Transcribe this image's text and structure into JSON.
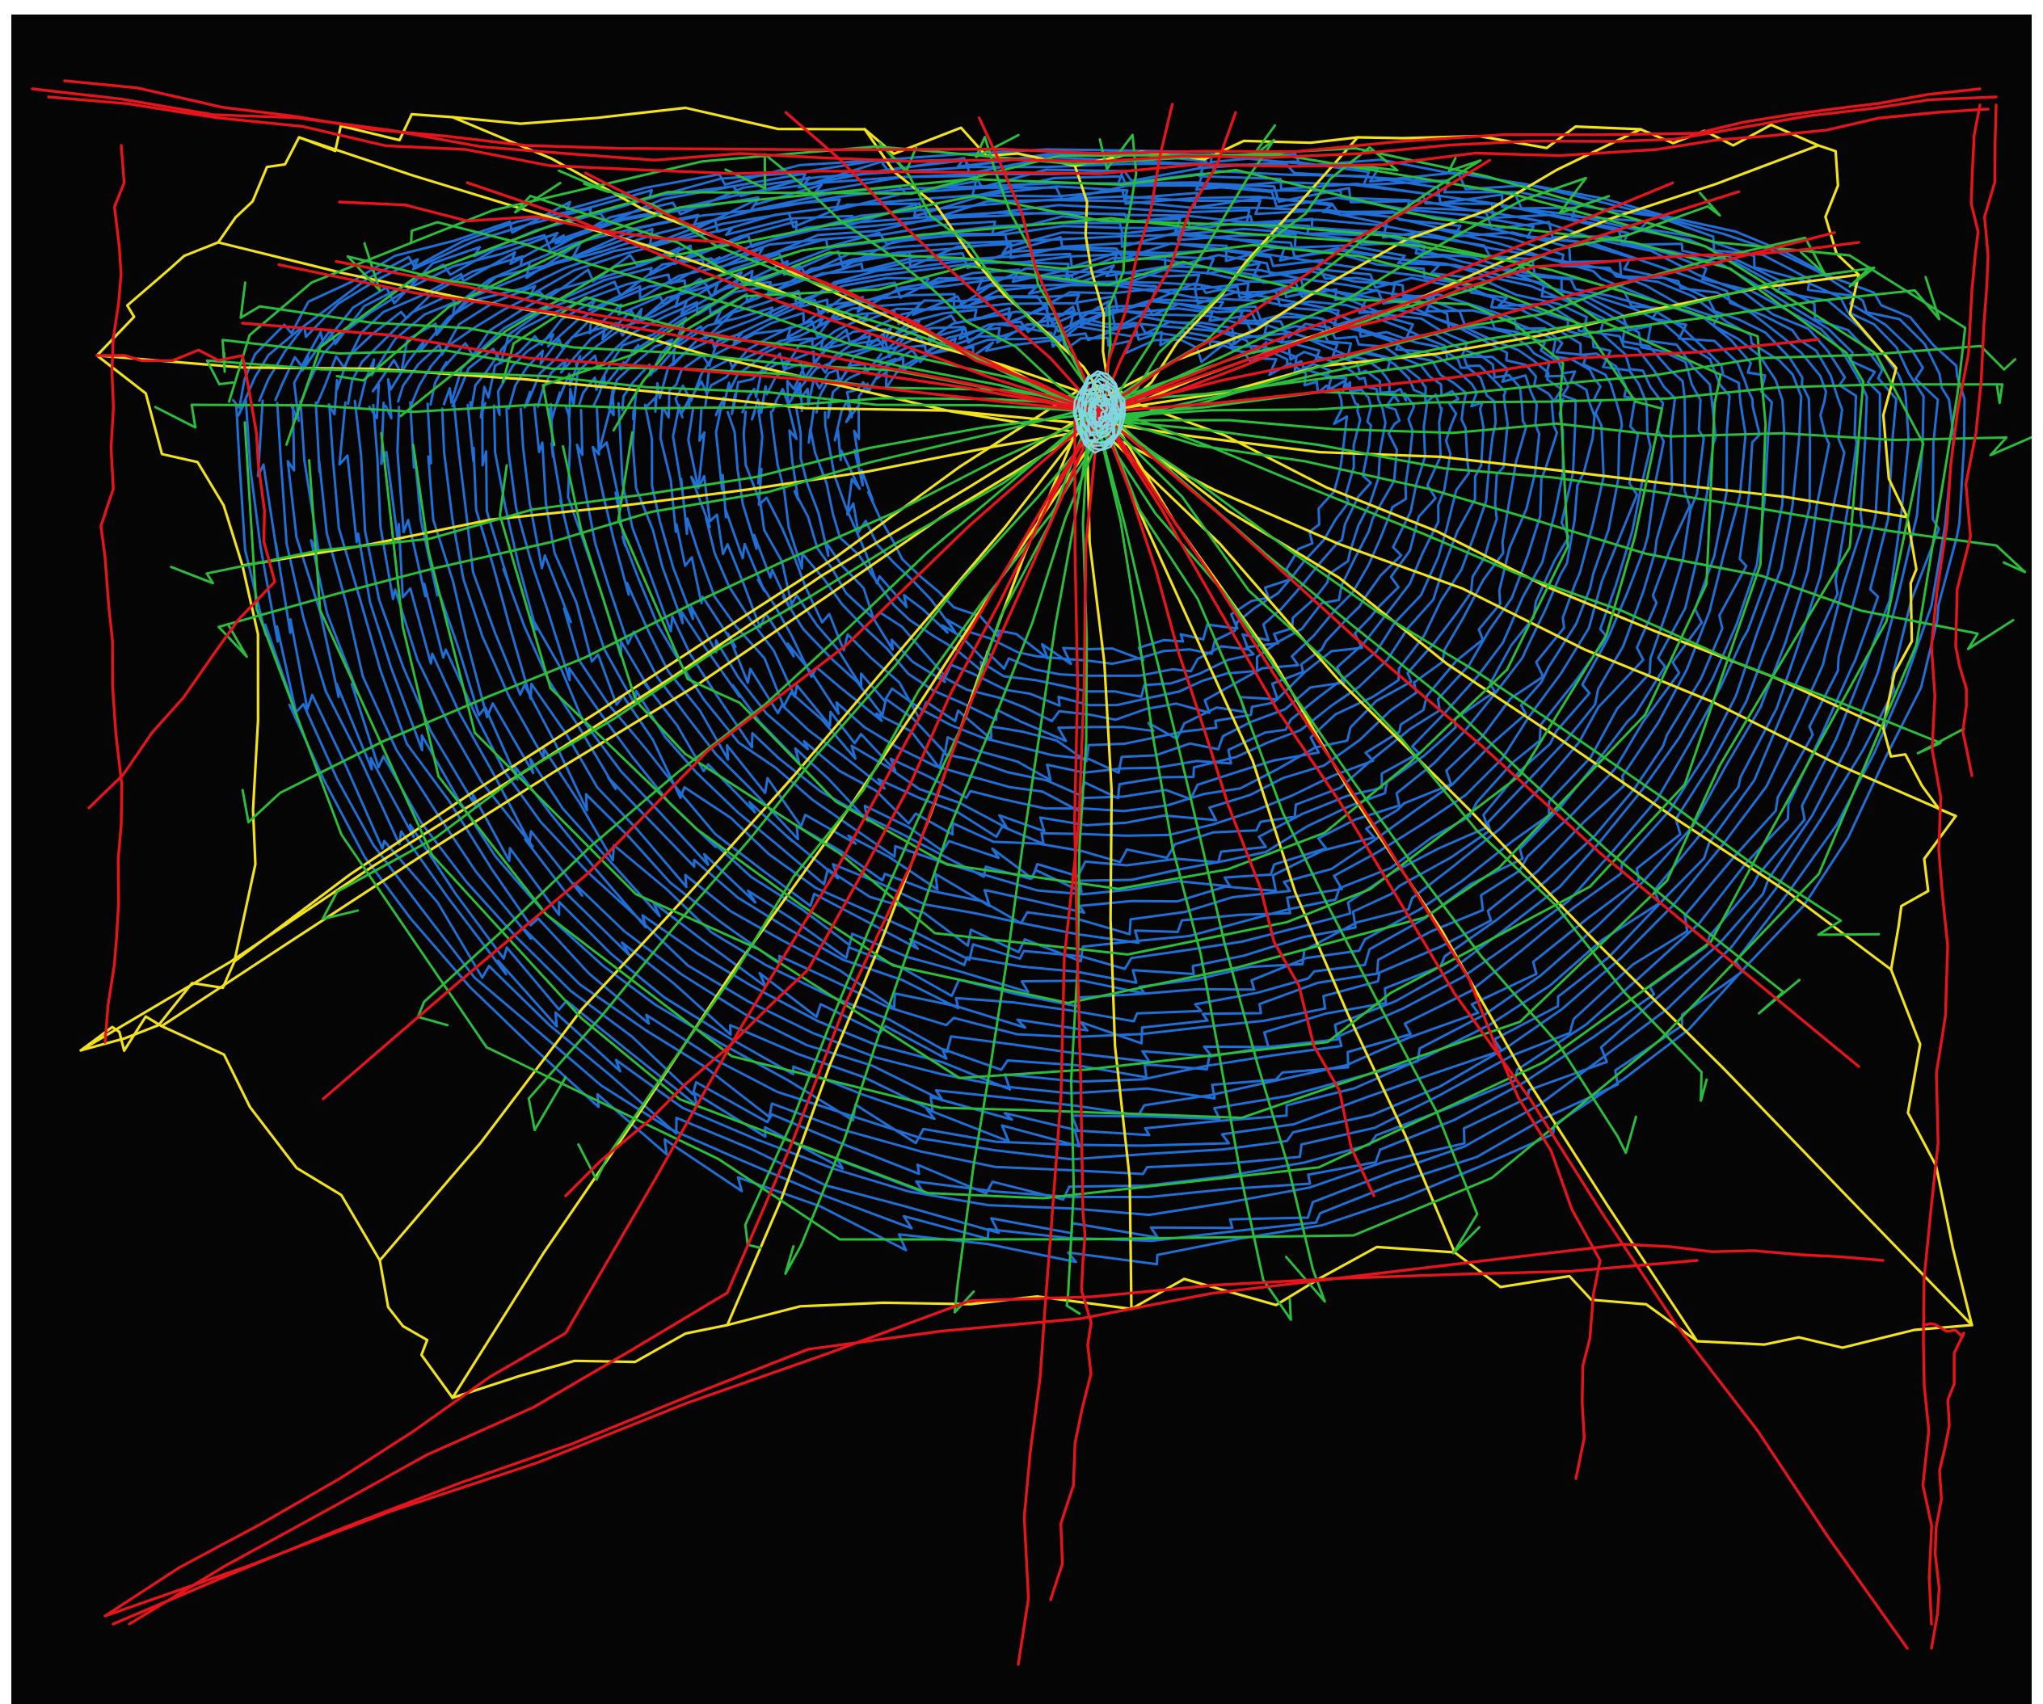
{
  "image": {
    "subject": "spider-web-construction-trajectory",
    "background_color": "#050505",
    "frame_color": "#ffffff"
  },
  "legend_colors": {
    "frame_threads": "#e8141c",
    "auxiliary_threads": "#f2e21a",
    "radial_threads": "#2bbd3c",
    "capture_spiral": "#1f6fd6",
    "hub": "#7fd6e0"
  },
  "render_order": [
    "capture_spiral",
    "auxiliary_threads",
    "radial_threads",
    "frame_threads",
    "hub"
  ]
}
